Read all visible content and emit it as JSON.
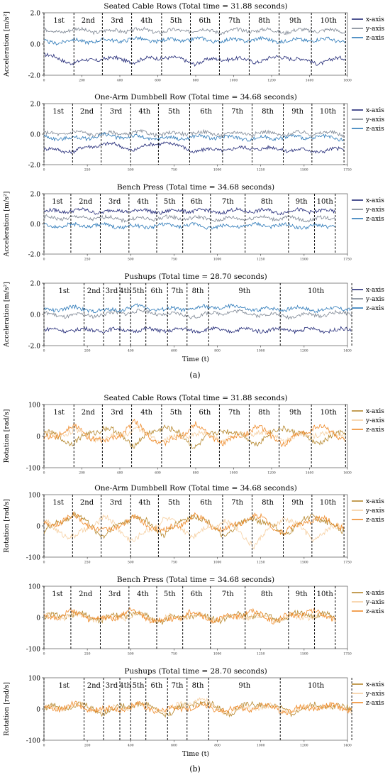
{
  "captions": {
    "a": "(a)",
    "b": "(b)"
  },
  "colors": {
    "accel": {
      "x": "#232a78",
      "y": "#7d8693",
      "z": "#2a78b8"
    },
    "rot": {
      "x": "#b5862b",
      "y": "#f6cfa0",
      "z": "#ee8a2a"
    }
  },
  "chart_data": [
    {
      "type": "line",
      "group": "a",
      "title": "Seated Cable Rows (Total time = 31.88 seconds)",
      "ylabel": "Acceleration [m/s²]",
      "xlabel": "",
      "ylim": [
        -2,
        2
      ],
      "yticks": [
        "2.0",
        "0.0",
        "-2.0"
      ],
      "xlim": [
        0,
        1600
      ],
      "xticks": [
        0,
        200,
        400,
        600,
        800,
        1000,
        1200,
        1400,
        1600
      ],
      "reps": [
        "1st",
        "2nd",
        "3rd",
        "4th",
        "5th",
        "6th",
        "7th",
        "8th",
        "9th",
        "10th"
      ],
      "boundaries": [
        0,
        158,
        308,
        462,
        620,
        772,
        925,
        1082,
        1240,
        1410,
        1590
      ],
      "series": [
        {
          "name": "x-axis",
          "values": [
            -0.7,
            -1.2,
            -0.9,
            -1.1,
            -0.8,
            -1.2,
            -0.9,
            -1.1,
            -0.8,
            -1.2,
            -0.9
          ]
        },
        {
          "name": "y-axis",
          "values": [
            0.8,
            0.9,
            0.8,
            0.9,
            0.8,
            0.9,
            0.8,
            0.9,
            0.8,
            0.9,
            0.8
          ]
        },
        {
          "name": "z-axis",
          "values": [
            0.1,
            0.2,
            0.2,
            0.3,
            0.2,
            0.3,
            0.2,
            0.3,
            0.2,
            0.3,
            0.2
          ]
        }
      ]
    },
    {
      "type": "line",
      "group": "a",
      "title": "One-Arm Dumbbell Row (Total time = 34.68 seconds)",
      "ylabel": "",
      "xlabel": "",
      "ylim": [
        -2,
        2
      ],
      "yticks": [
        "2.0",
        "0.0",
        "-2.0"
      ],
      "xlim": [
        0,
        1750
      ],
      "xticks": [
        0,
        250,
        500,
        750,
        1000,
        1250,
        1500,
        1750
      ],
      "reps": [
        "1st",
        "2nd",
        "3rd",
        "4th",
        "5th",
        "6th",
        "7th",
        "8th",
        "9th",
        "10th"
      ],
      "boundaries": [
        0,
        165,
        330,
        500,
        660,
        840,
        1030,
        1200,
        1380,
        1545,
        1730
      ],
      "series": [
        {
          "name": "x-axis",
          "values": [
            -1.0,
            -1.1,
            -0.6,
            -1.0,
            -0.5,
            -1.1,
            -1.0,
            -0.9,
            -1.0,
            -1.1,
            -1.0
          ]
        },
        {
          "name": "y-axis",
          "values": [
            0.0,
            0.1,
            0.0,
            0.1,
            0.0,
            0.1,
            0.0,
            0.1,
            0.0,
            0.1,
            0.0
          ]
        },
        {
          "name": "z-axis",
          "values": [
            -0.2,
            -0.3,
            -0.1,
            -0.2,
            -0.3,
            -0.2,
            -0.2,
            -0.3,
            -0.2,
            -0.2,
            -0.3
          ]
        }
      ]
    },
    {
      "type": "line",
      "group": "a",
      "title": "Bench Press (Total time = 34.68 seconds)",
      "ylabel": "Acceleration [m/s²]",
      "xlabel": "",
      "ylim": [
        -2,
        2
      ],
      "yticks": [
        "2.0",
        "0.0",
        "-2.0"
      ],
      "xlim": [
        0,
        1750
      ],
      "xticks": [
        0,
        250,
        500,
        750,
        1000,
        1250,
        1500,
        1750
      ],
      "reps": [
        "1st",
        "2nd",
        "3rd",
        "4th",
        "5th",
        "6th",
        "7th",
        "8th",
        "9th",
        "10th"
      ],
      "boundaries": [
        0,
        155,
        325,
        490,
        650,
        800,
        960,
        1160,
        1410,
        1560,
        1680
      ],
      "series": [
        {
          "name": "x-axis",
          "values": [
            0.8,
            0.9,
            0.8,
            0.9,
            0.8,
            0.9,
            0.8,
            0.9,
            0.8,
            0.9,
            0.8
          ]
        },
        {
          "name": "y-axis",
          "values": [
            0.4,
            0.4,
            0.4,
            0.3,
            0.4,
            0.4,
            0.3,
            0.4,
            0.4,
            0.3,
            0.4
          ]
        },
        {
          "name": "z-axis",
          "values": [
            -0.1,
            -0.1,
            -0.1,
            -0.2,
            -0.1,
            -0.1,
            -0.2,
            -0.1,
            -0.1,
            -0.2,
            -0.1
          ]
        }
      ]
    },
    {
      "type": "line",
      "group": "a",
      "title": "Pushups (Total time = 28.70 seconds)",
      "ylabel": "Acceleration [m/s²]",
      "xlabel": "Time (t)",
      "ylim": [
        -2,
        2
      ],
      "yticks": [
        "2.0",
        "0.0",
        "-2.0"
      ],
      "xlim": [
        0,
        1400
      ],
      "xticks": [
        0,
        200,
        400,
        600,
        800,
        1000,
        1200,
        1400
      ],
      "reps": [
        "1st",
        "2nd",
        "3rd",
        "4th",
        "5th",
        "6th",
        "7th",
        "8th",
        "9th",
        "10th"
      ],
      "boundaries": [
        0,
        185,
        275,
        350,
        400,
        470,
        570,
        660,
        760,
        1090,
        1420
      ],
      "series": [
        {
          "name": "x-axis",
          "values": [
            -1.0,
            -1.0,
            -1.0,
            -1.0,
            -1.0,
            -1.0,
            -1.0,
            -1.0,
            -1.0,
            -1.0,
            -1.0
          ]
        },
        {
          "name": "y-axis",
          "values": [
            0.0,
            -0.1,
            0.0,
            0.2,
            0.0,
            -0.1,
            0.2,
            0.0,
            -0.1,
            0.0,
            0.1
          ]
        },
        {
          "name": "z-axis",
          "values": [
            0.3,
            0.4,
            0.2,
            0.5,
            0.3,
            0.4,
            0.5,
            0.3,
            0.4,
            0.3,
            0.4
          ]
        }
      ]
    },
    {
      "type": "line",
      "group": "b",
      "title": "Seated Cable Rows (Total time = 31.88 seconds)",
      "ylabel": "Rotation [rad/s]",
      "xlabel": "",
      "ylim": [
        -100,
        100
      ],
      "yticks": [
        "100",
        "0",
        "-100"
      ],
      "xlim": [
        0,
        1600
      ],
      "xticks": [
        0,
        200,
        400,
        600,
        800,
        1000,
        1200,
        1400,
        1600
      ],
      "reps": [
        "1st",
        "2nd",
        "3rd",
        "4th",
        "5th",
        "6th",
        "7th",
        "8th",
        "9th",
        "10th"
      ],
      "boundaries": [
        0,
        158,
        308,
        462,
        620,
        772,
        925,
        1082,
        1240,
        1410,
        1590
      ],
      "series": [
        {
          "name": "x-axis",
          "values": [
            10,
            -20,
            30,
            -25,
            35,
            -30,
            25,
            -20,
            30,
            -20,
            10
          ]
        },
        {
          "name": "y-axis",
          "values": [
            0,
            15,
            -10,
            20,
            -15,
            10,
            -10,
            15,
            -10,
            10,
            0
          ]
        },
        {
          "name": "z-axis",
          "values": [
            -10,
            30,
            -25,
            40,
            -30,
            35,
            -25,
            30,
            -25,
            35,
            -10
          ]
        }
      ]
    },
    {
      "type": "line",
      "group": "b",
      "title": "One-Arm Dumbbell Row (Total time = 34.68 seconds)",
      "ylabel": "Rotation [rad/s]",
      "xlabel": "",
      "ylim": [
        -100,
        100
      ],
      "yticks": [
        "100",
        "0",
        "-100"
      ],
      "xlim": [
        0,
        1750
      ],
      "xticks": [
        0,
        250,
        500,
        750,
        1000,
        1250,
        1500,
        1750
      ],
      "reps": [
        "1st",
        "2nd",
        "3rd",
        "4th",
        "5th",
        "6th",
        "7th",
        "8th",
        "9th",
        "10th"
      ],
      "boundaries": [
        0,
        165,
        330,
        500,
        660,
        840,
        1030,
        1200,
        1380,
        1545,
        1730
      ],
      "series": [
        {
          "name": "x-axis",
          "values": [
            -20,
            40,
            -30,
            35,
            -25,
            40,
            -30,
            30,
            -25,
            35,
            -20
          ]
        },
        {
          "name": "y-axis",
          "values": [
            10,
            -40,
            30,
            -50,
            25,
            -30,
            20,
            -60,
            30,
            -40,
            10
          ]
        },
        {
          "name": "z-axis",
          "values": [
            0,
            30,
            -20,
            25,
            -20,
            30,
            -15,
            35,
            -20,
            25,
            0
          ]
        }
      ]
    },
    {
      "type": "line",
      "group": "b",
      "title": "Bench Press (Total time = 34.68 seconds)",
      "ylabel": "",
      "xlabel": "",
      "ylim": [
        -100,
        100
      ],
      "yticks": [
        "100",
        "0",
        "-100"
      ],
      "xlim": [
        0,
        1750
      ],
      "xticks": [
        0,
        250,
        500,
        750,
        1000,
        1250,
        1500,
        1750
      ],
      "reps": [
        "1st",
        "2nd",
        "3rd",
        "4th",
        "5th",
        "6th",
        "7th",
        "8th",
        "9th",
        "10th"
      ],
      "boundaries": [
        0,
        155,
        325,
        490,
        650,
        800,
        960,
        1160,
        1410,
        1560,
        1680
      ],
      "series": [
        {
          "name": "x-axis",
          "values": [
            0,
            10,
            -5,
            15,
            -10,
            10,
            -5,
            10,
            -5,
            15,
            0
          ]
        },
        {
          "name": "y-axis",
          "values": [
            0,
            5,
            -5,
            5,
            -5,
            5,
            -5,
            5,
            -5,
            5,
            0
          ]
        },
        {
          "name": "z-axis",
          "values": [
            0,
            15,
            -10,
            20,
            -15,
            15,
            -10,
            20,
            -10,
            20,
            0
          ]
        }
      ]
    },
    {
      "type": "line",
      "group": "b",
      "title": "Pushups (Total time = 28.70 seconds)",
      "ylabel": "Rotation [rad/s]",
      "xlabel": "Time (t)",
      "ylim": [
        -100,
        100
      ],
      "yticks": [
        "100",
        "0",
        "-100"
      ],
      "xlim": [
        0,
        1400
      ],
      "xticks": [
        0,
        200,
        400,
        600,
        800,
        1000,
        1200,
        1400
      ],
      "reps": [
        "1st",
        "2nd",
        "3rd",
        "4th",
        "5th",
        "6th",
        "7th",
        "8th",
        "9th",
        "10th"
      ],
      "boundaries": [
        0,
        185,
        275,
        350,
        400,
        470,
        570,
        660,
        760,
        1090,
        1420
      ],
      "series": [
        {
          "name": "x-axis",
          "values": [
            0,
            15,
            -10,
            20,
            -15,
            25,
            -10,
            20,
            -10,
            15,
            0
          ]
        },
        {
          "name": "y-axis",
          "values": [
            0,
            10,
            -5,
            10,
            -5,
            30,
            -10,
            10,
            -5,
            10,
            0
          ]
        },
        {
          "name": "z-axis",
          "values": [
            0,
            10,
            -5,
            10,
            -5,
            10,
            -5,
            10,
            -5,
            10,
            0
          ]
        }
      ]
    }
  ]
}
